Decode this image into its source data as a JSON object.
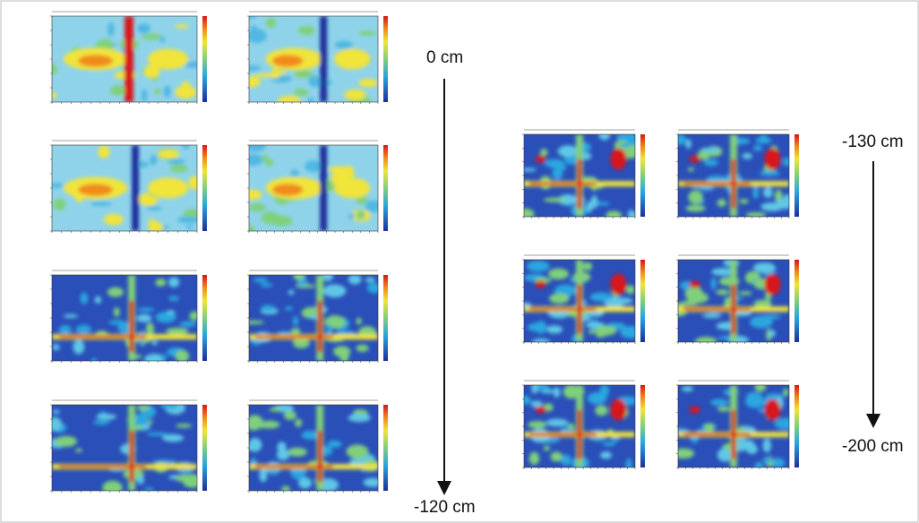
{
  "depth_labels": [
    "0 cm",
    "-120 cm",
    "-130 cm",
    "-200 cm"
  ]
}
